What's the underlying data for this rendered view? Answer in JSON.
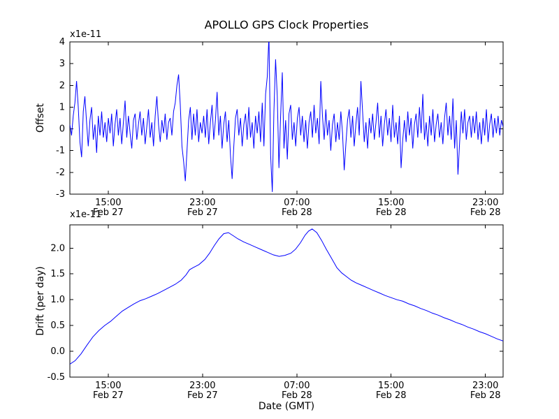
{
  "figure": {
    "background": "#ffffff",
    "frame_color": "#000000"
  },
  "chart_data": [
    {
      "type": "line",
      "name": "offset-plot",
      "title": "APOLLO GPS Clock Properties",
      "ylabel": "Offset",
      "scale_label": "x1e-11",
      "line_color": "#0000ff",
      "grid": false,
      "legend": "none",
      "xlim": [
        11.75,
        48.5
      ],
      "ylim": [
        -3,
        4
      ],
      "yticks": [
        {
          "value": 4,
          "label": "4"
        },
        {
          "value": 3,
          "label": "3"
        },
        {
          "value": 2,
          "label": "2"
        },
        {
          "value": 1,
          "label": "1"
        },
        {
          "value": 0,
          "label": "0"
        },
        {
          "value": -1,
          "label": "-1"
        },
        {
          "value": -2,
          "label": "-2"
        },
        {
          "value": -3,
          "label": "-3"
        }
      ],
      "xticks": [
        {
          "value": 15,
          "label": [
            "15:00",
            "Feb 27"
          ]
        },
        {
          "value": 23,
          "label": [
            "23:00",
            "Feb 27"
          ]
        },
        {
          "value": 31,
          "label": [
            "07:00",
            "Feb 28"
          ]
        },
        {
          "value": 39,
          "label": [
            "15:00",
            "Feb 28"
          ]
        },
        {
          "value": 47,
          "label": [
            "23:00",
            "Feb 28"
          ]
        }
      ],
      "values": [
        0.2,
        -0.3,
        0.6,
        1.2,
        2.2,
        1.0,
        -0.6,
        -1.3,
        0.8,
        1.5,
        0.3,
        -0.8,
        0.4,
        1.0,
        -0.5,
        0.2,
        -1.1,
        0.6,
        -0.3,
        0.8,
        -0.4,
        0.3,
        -0.6,
        0.5,
        -0.2,
        0.7,
        -0.8,
        0.2,
        0.9,
        -0.3,
        0.5,
        -0.7,
        0.3,
        1.3,
        -0.4,
        0.6,
        -0.2,
        -0.9,
        0.4,
        0.7,
        -0.5,
        0.2,
        0.8,
        -0.3,
        0.5,
        -0.7,
        0.1,
        0.9,
        -0.4,
        0.3,
        -0.8,
        0.6,
        1.5,
        0.2,
        -0.6,
        0.4,
        -0.2,
        0.7,
        -0.5,
        0.3,
        0.5,
        -0.3,
        0.8,
        1.2,
        2.0,
        2.5,
        1.1,
        -0.8,
        -1.5,
        -2.4,
        -1.0,
        0.4,
        1.0,
        -0.5,
        0.7,
        -0.3,
        0.9,
        -0.6,
        0.3,
        -0.2,
        0.6,
        -0.4,
        0.9,
        -0.7,
        0.3,
        1.1,
        -0.5,
        0.4,
        1.7,
        -0.3,
        0.6,
        -0.9,
        0.2,
        0.8,
        -0.6,
        0.4,
        -1.2,
        -2.3,
        -0.8,
        0.5,
        0.9,
        -0.3,
        0.5,
        -0.8,
        0.2,
        0.7,
        -0.5,
        1.0,
        -0.4,
        0.3,
        -0.9,
        0.6,
        -0.2,
        0.8,
        -0.6,
        1.2,
        -0.8,
        1.6,
        2.4,
        4.3,
        -1.2,
        -2.9,
        0.8,
        3.2,
        1.5,
        -1.8,
        0.6,
        2.6,
        -0.9,
        0.4,
        -1.4,
        0.7,
        1.1,
        -0.5,
        0.3,
        -0.8,
        0.5,
        1.0,
        -0.3,
        0.6,
        -0.6,
        0.4,
        -0.9,
        0.3,
        0.8,
        -0.4,
        1.1,
        -0.2,
        0.5,
        -0.7,
        2.2,
        0.6,
        -0.5,
        0.9,
        -0.3,
        0.4,
        -1.0,
        0.2,
        0.7,
        -0.6,
        0.3,
        -0.5,
        0.8,
        -0.2,
        -1.9,
        -0.7,
        0.4,
        0.9,
        -0.4,
        0.6,
        -0.8,
        0.2,
        1.0,
        -0.3,
        2.2,
        0.8,
        -0.6,
        0.3,
        -0.9,
        0.5,
        -0.2,
        0.7,
        -0.5,
        0.3,
        1.2,
        -0.4,
        0.6,
        -0.8,
        0.2,
        0.9,
        -0.3,
        0.5,
        -0.6,
        1.1,
        -0.4,
        0.3,
        -0.7,
        0.6,
        -1.8,
        -0.5,
        0.4,
        -0.6,
        0.8,
        -0.3,
        0.5,
        -0.9,
        0.2,
        0.7,
        -0.4,
        1.0,
        -0.2,
        1.6,
        -0.5,
        0.3,
        -0.8,
        0.6,
        -0.3,
        0.9,
        -0.6,
        0.2,
        0.7,
        -0.4,
        0.3,
        -0.7,
        0.5,
        1.2,
        -0.3,
        0.6,
        -0.5,
        1.4,
        -0.9,
        0.4,
        -2.1,
        -0.6,
        0.8,
        -0.2,
        0.9,
        -0.5,
        0.3,
        0.6,
        -0.4,
        0.6,
        -0.2,
        0.8,
        -0.5,
        0.3,
        -0.7,
        0.5,
        -0.3,
        0.9,
        -0.6,
        0.2,
        0.7,
        -0.4,
        0.5,
        -0.2,
        0.6,
        -0.3,
        0.4,
        0.1
      ]
    },
    {
      "type": "line",
      "name": "drift-plot",
      "xlabel": "Date (GMT)",
      "ylabel": "Drift (per day)",
      "scale_label": "x1e-11",
      "line_color": "#0000ff",
      "grid": false,
      "legend": "none",
      "xlim": [
        11.75,
        48.5
      ],
      "ylim": [
        -0.5,
        2.45
      ],
      "yticks": [
        {
          "value": 2.0,
          "label": "2.0"
        },
        {
          "value": 1.5,
          "label": "1.5"
        },
        {
          "value": 1.0,
          "label": "1.0"
        },
        {
          "value": 0.5,
          "label": "0.5"
        },
        {
          "value": 0.0,
          "label": "0.0"
        },
        {
          "value": -0.5,
          "label": "-0.5"
        }
      ],
      "xticks": [
        {
          "value": 15,
          "label": [
            "15:00",
            "Feb 27"
          ]
        },
        {
          "value": 23,
          "label": [
            "23:00",
            "Feb 27"
          ]
        },
        {
          "value": 31,
          "label": [
            "07:00",
            "Feb 28"
          ]
        },
        {
          "value": 39,
          "label": [
            "15:00",
            "Feb 28"
          ]
        },
        {
          "value": 47,
          "label": [
            "23:00",
            "Feb 28"
          ]
        }
      ],
      "x": [
        11.75,
        12.2,
        12.7,
        13.2,
        13.7,
        14.2,
        14.7,
        15.2,
        15.7,
        16.2,
        16.7,
        17.2,
        17.7,
        18.2,
        18.7,
        19.2,
        19.7,
        20.2,
        20.7,
        21.2,
        21.6,
        21.9,
        22.2,
        22.7,
        23.2,
        23.6,
        24.0,
        24.4,
        24.8,
        25.2,
        25.6,
        26.0,
        26.5,
        27.0,
        27.5,
        28.0,
        28.5,
        29.0,
        29.5,
        30.0,
        30.5,
        30.9,
        31.3,
        31.7,
        32.0,
        32.3,
        32.7,
        33.1,
        33.5,
        34.0,
        34.4,
        34.8,
        35.2,
        35.6,
        36.0,
        36.5,
        37.0,
        37.5,
        38.0,
        38.5,
        39.0,
        39.5,
        40.0,
        40.5,
        41.0,
        41.5,
        42.0,
        42.5,
        43.0,
        43.5,
        44.0,
        44.5,
        45.0,
        45.5,
        46.0,
        46.5,
        47.0,
        47.5,
        48.0,
        48.5
      ],
      "y": [
        -0.25,
        -0.18,
        -0.05,
        0.12,
        0.28,
        0.4,
        0.5,
        0.58,
        0.68,
        0.78,
        0.85,
        0.92,
        0.98,
        1.02,
        1.07,
        1.12,
        1.18,
        1.24,
        1.3,
        1.38,
        1.48,
        1.58,
        1.62,
        1.68,
        1.78,
        1.9,
        2.05,
        2.18,
        2.28,
        2.3,
        2.24,
        2.18,
        2.12,
        2.07,
        2.02,
        1.97,
        1.92,
        1.87,
        1.84,
        1.86,
        1.9,
        1.98,
        2.1,
        2.25,
        2.33,
        2.37,
        2.3,
        2.15,
        1.98,
        1.78,
        1.62,
        1.52,
        1.45,
        1.38,
        1.33,
        1.28,
        1.23,
        1.18,
        1.13,
        1.08,
        1.04,
        1.0,
        0.97,
        0.92,
        0.88,
        0.83,
        0.79,
        0.74,
        0.7,
        0.65,
        0.61,
        0.56,
        0.52,
        0.47,
        0.43,
        0.38,
        0.34,
        0.29,
        0.24,
        0.2
      ]
    }
  ]
}
